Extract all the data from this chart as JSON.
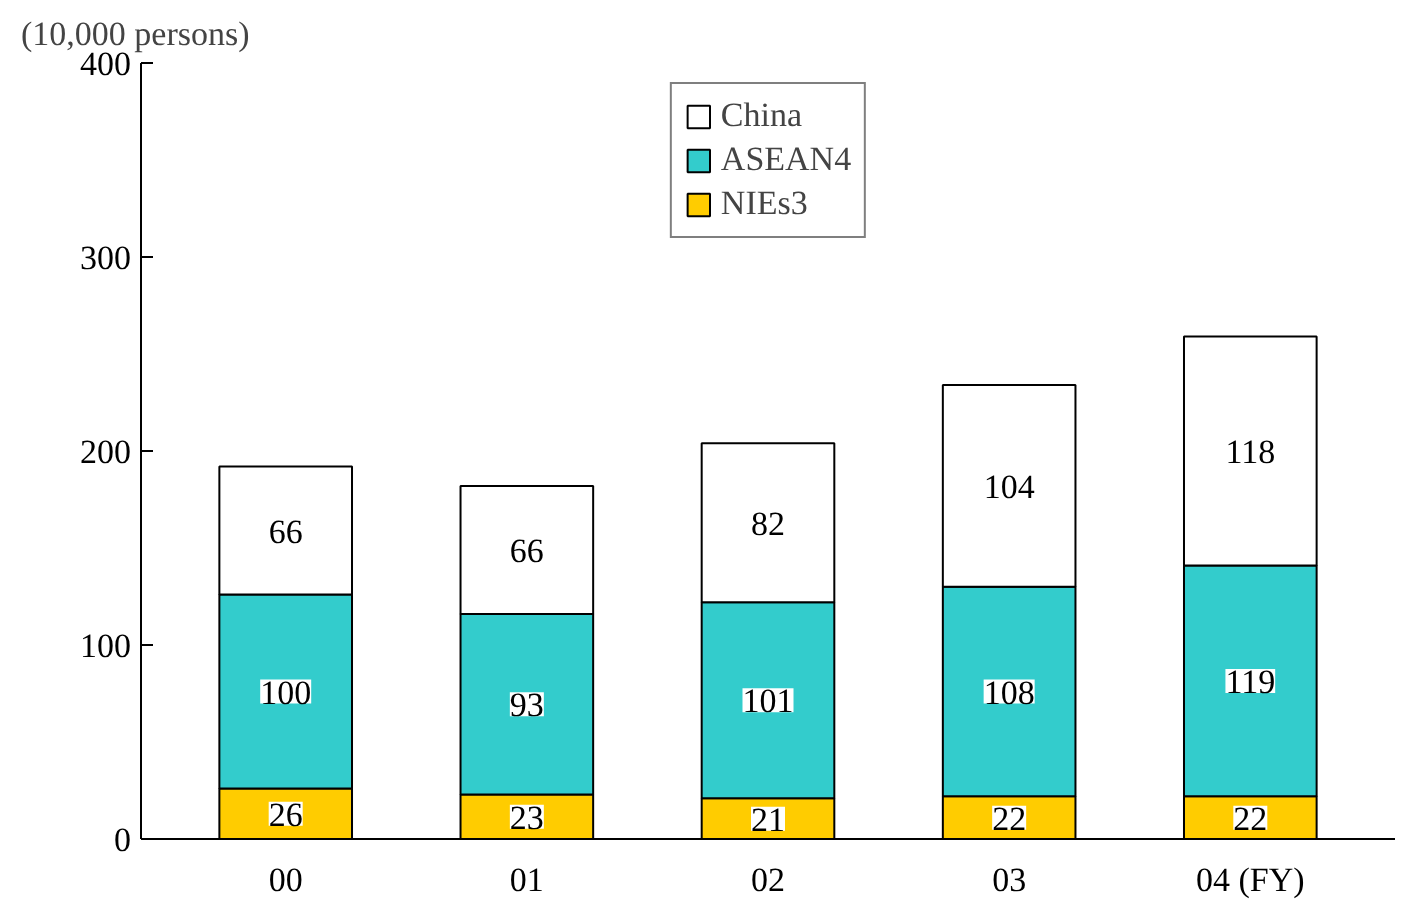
{
  "chart_data": {
    "type": "bar",
    "stacked": true,
    "ylabel": "(10,000 persons)",
    "categories": [
      "00",
      "01",
      "02",
      "03",
      "04 (FY)"
    ],
    "series": [
      {
        "name": "NIEs3",
        "color": "#ffcc00",
        "values": [
          26,
          23,
          21,
          22,
          22
        ]
      },
      {
        "name": "ASEAN4",
        "color": "#33cccc",
        "values": [
          100,
          93,
          101,
          108,
          119
        ]
      },
      {
        "name": "China",
        "color": "#ffffff",
        "values": [
          66,
          66,
          82,
          104,
          118
        ]
      }
    ],
    "ylim": [
      0,
      400
    ],
    "yticks": [
      0,
      100,
      200,
      300,
      400
    ],
    "grid": false,
    "legend": "top",
    "data_labels": true
  }
}
